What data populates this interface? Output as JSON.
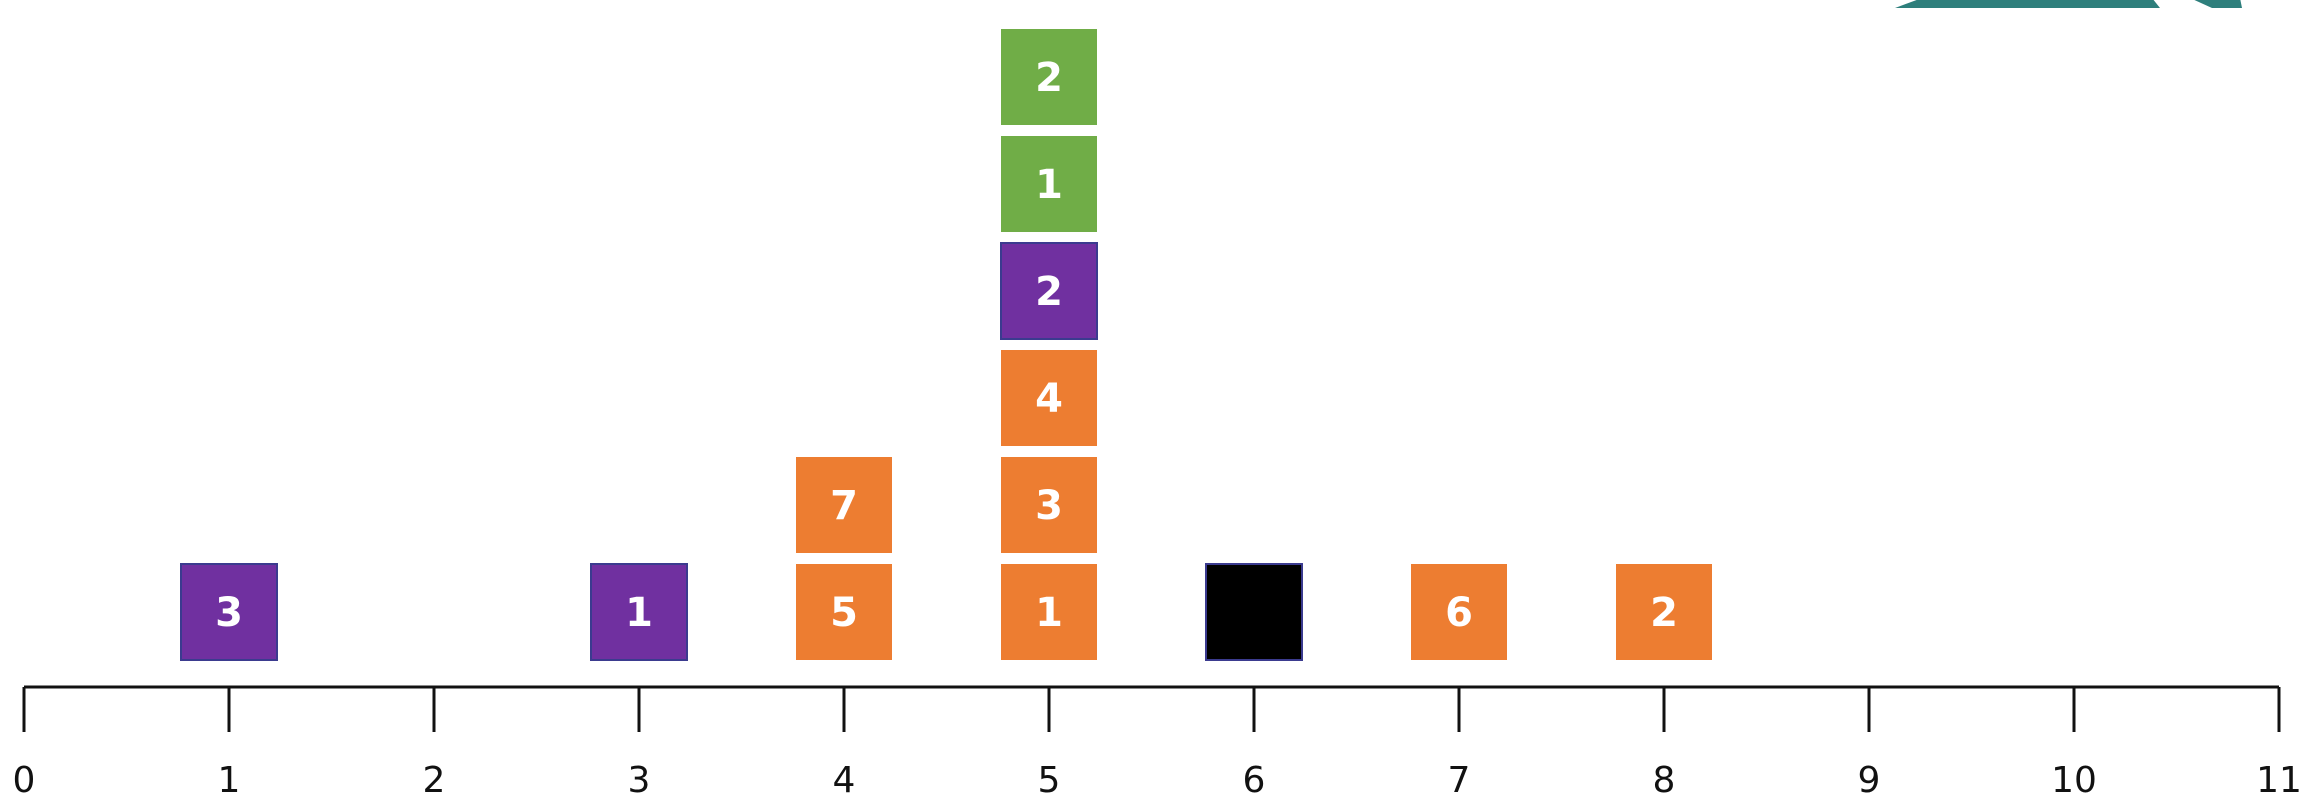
{
  "chart_data": {
    "type": "dot-plot",
    "x_axis": {
      "min": 0,
      "max": 11,
      "ticks": [
        "0",
        "1",
        "2",
        "3",
        "4",
        "5",
        "6",
        "7",
        "8",
        "9",
        "10",
        "11"
      ]
    },
    "colors": {
      "orange": "#ED7D31",
      "purple": "#7030A0",
      "green": "#70AD47",
      "black": "#000000",
      "teal": "#2E7F7C"
    },
    "columns": [
      {
        "x": 1,
        "blocks": [
          {
            "color": "purple",
            "label": "3"
          }
        ]
      },
      {
        "x": 3,
        "blocks": [
          {
            "color": "purple",
            "label": "1"
          }
        ]
      },
      {
        "x": 4,
        "blocks": [
          {
            "color": "orange",
            "label": "5"
          },
          {
            "color": "orange",
            "label": "7"
          }
        ]
      },
      {
        "x": 5,
        "blocks": [
          {
            "color": "orange",
            "label": "1"
          },
          {
            "color": "orange",
            "label": "3"
          },
          {
            "color": "orange",
            "label": "4"
          },
          {
            "color": "purple",
            "label": "2"
          },
          {
            "color": "green",
            "label": "1"
          },
          {
            "color": "green",
            "label": "2"
          }
        ]
      },
      {
        "x": 6,
        "blocks": [
          {
            "color": "black",
            "label": ""
          }
        ]
      },
      {
        "x": 7,
        "blocks": [
          {
            "color": "orange",
            "label": "6"
          }
        ]
      },
      {
        "x": 8,
        "blocks": [
          {
            "color": "orange",
            "label": "2"
          }
        ]
      }
    ]
  }
}
